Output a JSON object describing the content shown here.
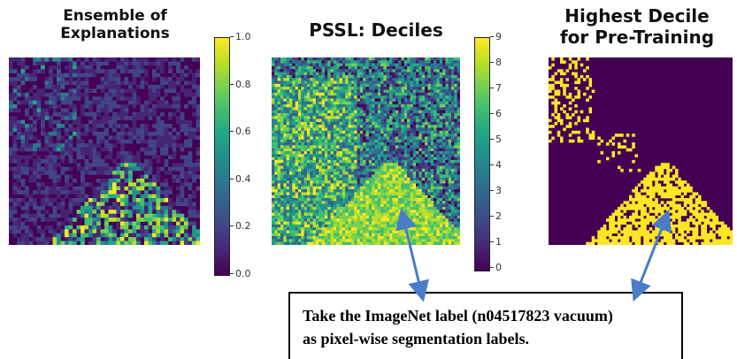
{
  "panels": [
    {
      "title_lines": [
        "Ensemble of",
        "Explanations"
      ],
      "colorbar_ticks": [
        "1.0",
        "0.8",
        "0.6",
        "0.4",
        "0.2",
        "0.0"
      ]
    },
    {
      "title_lines": [
        "PSSL: Deciles"
      ],
      "colorbar_ticks": [
        "9",
        "8",
        "7",
        "6",
        "5",
        "4",
        "3",
        "2",
        "1",
        "0"
      ]
    },
    {
      "title_lines": [
        "Highest Decile",
        "for Pre-Training"
      ]
    }
  ],
  "colors": {
    "viridis_dark": "#440154",
    "viridis_bright": "#fde725",
    "arrow": "#4a7cc7"
  },
  "callout": {
    "line1": "Take the ImageNet label (n04517823 vacuum)",
    "line2": "as pixel-wise segmentation labels."
  }
}
